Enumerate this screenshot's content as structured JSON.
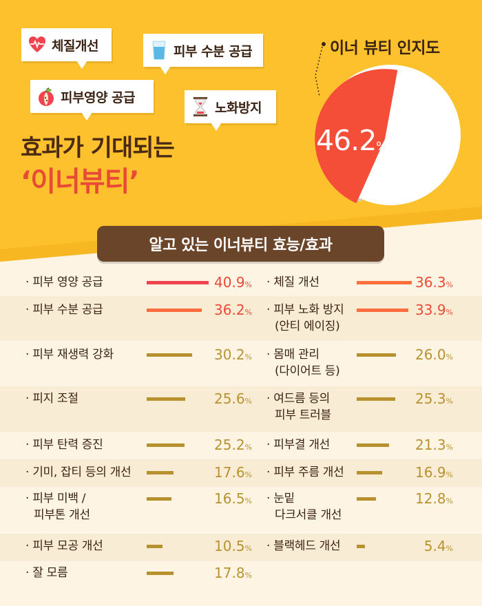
{
  "bubbles": [
    {
      "label": "체질개선",
      "icon": "heart-pulse-icon"
    },
    {
      "label": "피부 수분 공급",
      "icon": "water-glass-icon"
    },
    {
      "label": "피부영양 공급",
      "icon": "apple-icon"
    },
    {
      "label": "노화방지",
      "icon": "hourglass-icon"
    }
  ],
  "headline": {
    "line1": "효과가 기대되는",
    "line2": "‘이너뷰티’"
  },
  "chart_data": [
    {
      "type": "pie",
      "title": "이너 뷰티 인지도",
      "slices": [
        {
          "label": "이너 뷰티 인지도",
          "value": 46.2
        }
      ],
      "value_label": "46.2",
      "unit": "%",
      "colors": {
        "slice": "#f44d38",
        "rest": "#ffffff",
        "shadow": "#cfcfcf"
      }
    },
    {
      "type": "bar",
      "title": "알고 있는 이너뷰티 효능/효과",
      "unit": "%",
      "items": [
        {
          "label": "· 피부 영양 공급",
          "value": 40.9,
          "display": "40.9",
          "highlight": "red"
        },
        {
          "label": "· 체질 개선",
          "value": 36.3,
          "display": "36.3",
          "highlight": "orange"
        },
        {
          "label": "· 피부 수분 공급",
          "value": 36.2,
          "display": "36.2",
          "highlight": "orange"
        },
        {
          "label": "· 피부 노화 방지\n(안티 에이징)",
          "value": 33.9,
          "display": "33.9",
          "highlight": "orange"
        },
        {
          "label": "· 피부 재생력 강화",
          "value": 30.2,
          "display": "30.2"
        },
        {
          "label": "· 몸매 관리\n(다이어트 등)",
          "value": 26.0,
          "display": "26.0"
        },
        {
          "label": "· 피지 조절",
          "value": 25.6,
          "display": "25.6"
        },
        {
          "label": "· 여드름 등의\n피부 트러블",
          "value": 25.3,
          "display": "25.3"
        },
        {
          "label": "· 피부 탄력 증진",
          "value": 25.2,
          "display": "25.2"
        },
        {
          "label": "· 피부결 개선",
          "value": 21.3,
          "display": "21.3"
        },
        {
          "label": "· 기미, 잡티 등의 개선",
          "value": 17.6,
          "display": "17.6"
        },
        {
          "label": "· 피부 주름 개선",
          "value": 16.9,
          "display": "16.9"
        },
        {
          "label": "· 피부 미백 /\n피부톤 개선",
          "value": 16.5,
          "display": "16.5"
        },
        {
          "label": "· 눈밑\n다크서클 개선",
          "value": 12.8,
          "display": "12.8"
        },
        {
          "label": "· 피부 모공 개선",
          "value": 10.5,
          "display": "10.5"
        },
        {
          "label": "· 블랙헤드 개선",
          "value": 5.4,
          "display": "5.4"
        },
        {
          "label": "· 잘 모름",
          "value": 17.8,
          "display": "17.8"
        }
      ],
      "colors": {
        "red": "#f0434f",
        "orange": "#fb6d3d",
        "default": "#b6912d",
        "value_red": "#e94a36",
        "value_default": "#b89230"
      }
    }
  ]
}
